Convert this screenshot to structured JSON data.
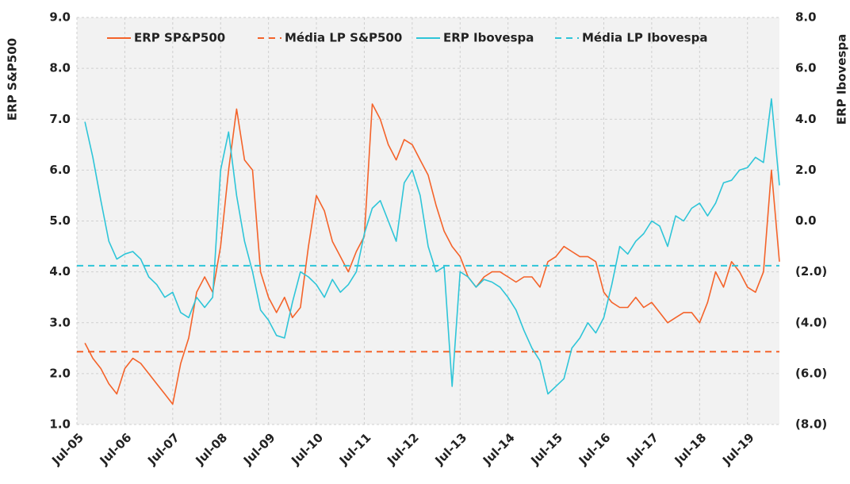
{
  "chart_data": {
    "type": "line",
    "ylabel": "ERP S&P500",
    "y2label": "ERP Ibovespa",
    "categories": [
      "Jul-05",
      null,
      null,
      null,
      null,
      null,
      "Jul-06",
      null,
      null,
      null,
      null,
      null,
      "Jul-07",
      null,
      null,
      null,
      null,
      null,
      "Jul-08",
      null,
      null,
      null,
      null,
      null,
      "Jul-09",
      null,
      null,
      null,
      null,
      null,
      "Jul-10",
      null,
      null,
      null,
      null,
      null,
      "Jul-11",
      null,
      null,
      null,
      null,
      null,
      "Jul-12",
      null,
      null,
      null,
      null,
      null,
      "Jul-13",
      null,
      null,
      null,
      null,
      null,
      "Jul-14",
      null,
      null,
      null,
      null,
      null,
      "Jul-15",
      null,
      null,
      null,
      null,
      null,
      "Jul-16",
      null,
      null,
      null,
      null,
      null,
      "Jul-17",
      null,
      null,
      null,
      null,
      null,
      "Jul-18",
      null,
      null,
      null,
      null,
      null,
      "Jul-19",
      null,
      null,
      null,
      null
    ],
    "series": [
      {
        "name": "ERP SP&P500",
        "color": "#f4632a",
        "axis": "y",
        "values": [
          null,
          2.6,
          2.3,
          2.1,
          1.8,
          1.6,
          2.1,
          2.3,
          2.2,
          2.0,
          1.8,
          1.6,
          1.4,
          2.2,
          2.7,
          3.6,
          3.9,
          3.6,
          4.5,
          6.0,
          7.2,
          6.2,
          6.0,
          4.0,
          3.5,
          3.2,
          3.5,
          3.1,
          3.3,
          4.5,
          5.5,
          5.2,
          4.6,
          4.3,
          4.0,
          4.4,
          4.7,
          7.3,
          7.0,
          6.5,
          6.2,
          6.6,
          6.5,
          6.2,
          5.9,
          5.3,
          4.8,
          4.5,
          4.3,
          3.9,
          3.7,
          3.9,
          4.0,
          4.0,
          3.9,
          3.8,
          3.9,
          3.9,
          3.7,
          4.2,
          4.3,
          4.5,
          4.4,
          4.3,
          4.3,
          4.2,
          3.6,
          3.4,
          3.3,
          3.3,
          3.5,
          3.3,
          3.4,
          3.2,
          3.0,
          3.1,
          3.2,
          3.2,
          3.0,
          3.4,
          4.0,
          3.7,
          4.2,
          4.0,
          3.7,
          3.6,
          4.0,
          6.0,
          4.2
        ]
      },
      {
        "name": "Média LP S&P500",
        "color": "#f4632a",
        "axis": "y",
        "dashed": true,
        "value": 2.43
      },
      {
        "name": "ERP Ibovespa",
        "color": "#2ec5d8",
        "axis": "y2",
        "values": [
          null,
          3.9,
          2.5,
          0.8,
          -0.8,
          -1.5,
          -1.3,
          -1.2,
          -1.5,
          -2.2,
          -2.5,
          -3.0,
          -2.8,
          -3.6,
          -3.8,
          -3.0,
          -3.4,
          -3.0,
          2.0,
          3.5,
          1.0,
          -0.8,
          -2.0,
          -3.5,
          -3.9,
          -4.5,
          -4.6,
          -3.2,
          -2.0,
          -2.2,
          -2.5,
          -3.0,
          -2.3,
          -2.8,
          -2.5,
          -2.0,
          -0.5,
          0.5,
          0.8,
          0.0,
          -0.8,
          1.5,
          2.0,
          1.0,
          -1.0,
          -2.0,
          -1.8,
          -6.5,
          -2.0,
          -2.2,
          -2.6,
          -2.3,
          -2.4,
          -2.6,
          -3.0,
          -3.5,
          -4.3,
          -5.0,
          -5.5,
          -6.8,
          -6.5,
          -6.2,
          -5.0,
          -4.6,
          -4.0,
          -4.4,
          -3.8,
          -2.5,
          -1.0,
          -1.3,
          -0.8,
          -0.5,
          0.0,
          -0.2,
          -1.0,
          0.2,
          0.0,
          0.5,
          0.7,
          0.2,
          0.7,
          1.5,
          1.6,
          2.0,
          2.1,
          2.5,
          2.3,
          4.8,
          1.4
        ]
      },
      {
        "name": "Média LP Ibovespa",
        "color": "#2ec5d8",
        "axis": "y2",
        "dashed": true,
        "value": -1.76
      }
    ],
    "ylim": [
      1,
      9
    ],
    "yticks": [
      {
        "value": 1,
        "label": "1.0"
      },
      {
        "value": 2,
        "label": "2.0"
      },
      {
        "value": 3,
        "label": "3.0"
      },
      {
        "value": 4,
        "label": "4.0"
      },
      {
        "value": 5,
        "label": "5.0"
      },
      {
        "value": 6,
        "label": "6.0"
      },
      {
        "value": 7,
        "label": "7.0"
      },
      {
        "value": 8,
        "label": "8.0"
      },
      {
        "value": 9,
        "label": "9.0"
      }
    ],
    "y2lim": [
      -8,
      8
    ],
    "y2ticks": [
      {
        "value": -8,
        "label": "(8.0)"
      },
      {
        "value": -6,
        "label": "(6.0)"
      },
      {
        "value": -4,
        "label": "(4.0)"
      },
      {
        "value": -2,
        "label": "(2.0)"
      },
      {
        "value": 0,
        "label": "0.0"
      },
      {
        "value": 2,
        "label": "2.0"
      },
      {
        "value": 4,
        "label": "4.0"
      },
      {
        "value": 6,
        "label": "6.0"
      },
      {
        "value": 8,
        "label": "8.0"
      }
    ],
    "grid": true
  }
}
